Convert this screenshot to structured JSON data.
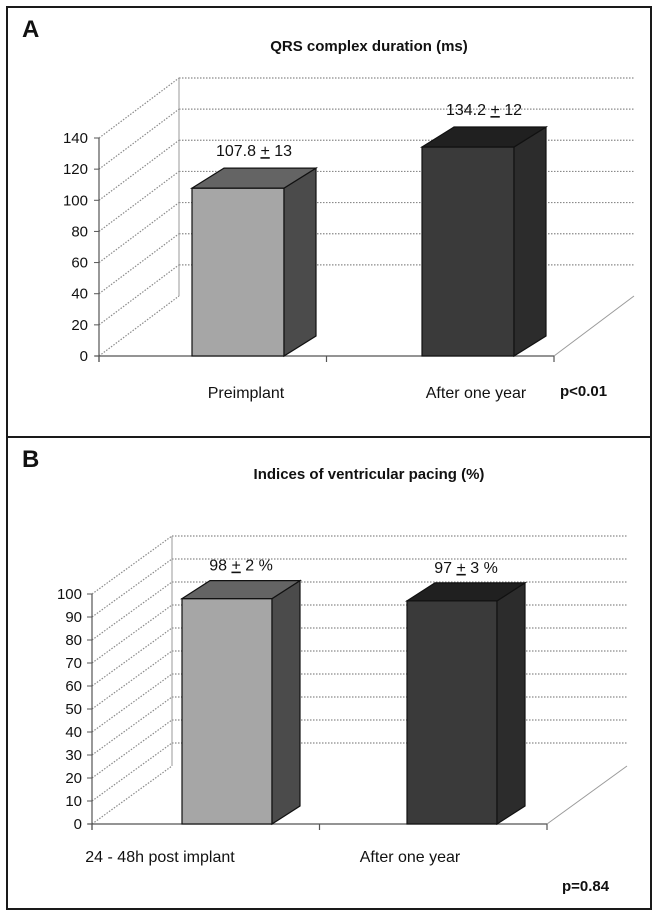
{
  "panels": [
    {
      "letter": "A",
      "p_value": "p<0.01",
      "chart_data": {
        "type": "bar",
        "title": "QRS complex duration (ms)",
        "categories": [
          "Preimplant",
          "After one year"
        ],
        "values": [
          107.8,
          134.2
        ],
        "data_labels": [
          {
            "value": "107.8",
            "sd": "13"
          },
          {
            "value": "134.2",
            "sd": "12"
          }
        ],
        "ylim": [
          0,
          140
        ],
        "yticks": [
          0,
          20,
          40,
          60,
          80,
          100,
          120,
          140
        ],
        "grid": true,
        "style": "3d",
        "colors": [
          "#a6a6a6",
          "#3a3a3a"
        ]
      }
    },
    {
      "letter": "B",
      "p_value": "p=0.84",
      "chart_data": {
        "type": "bar",
        "title": "Indices of ventricular pacing (%)",
        "categories": [
          "24 - 48h post implant",
          "After one year"
        ],
        "values": [
          98,
          97
        ],
        "data_labels": [
          {
            "value": "98",
            "sd": "2 %"
          },
          {
            "value": "97",
            "sd": "3 %"
          }
        ],
        "ylim": [
          0,
          100
        ],
        "yticks": [
          0,
          10,
          20,
          30,
          40,
          50,
          60,
          70,
          80,
          90,
          100
        ],
        "grid": true,
        "style": "3d",
        "colors": [
          "#a6a6a6",
          "#3a3a3a"
        ]
      }
    }
  ]
}
